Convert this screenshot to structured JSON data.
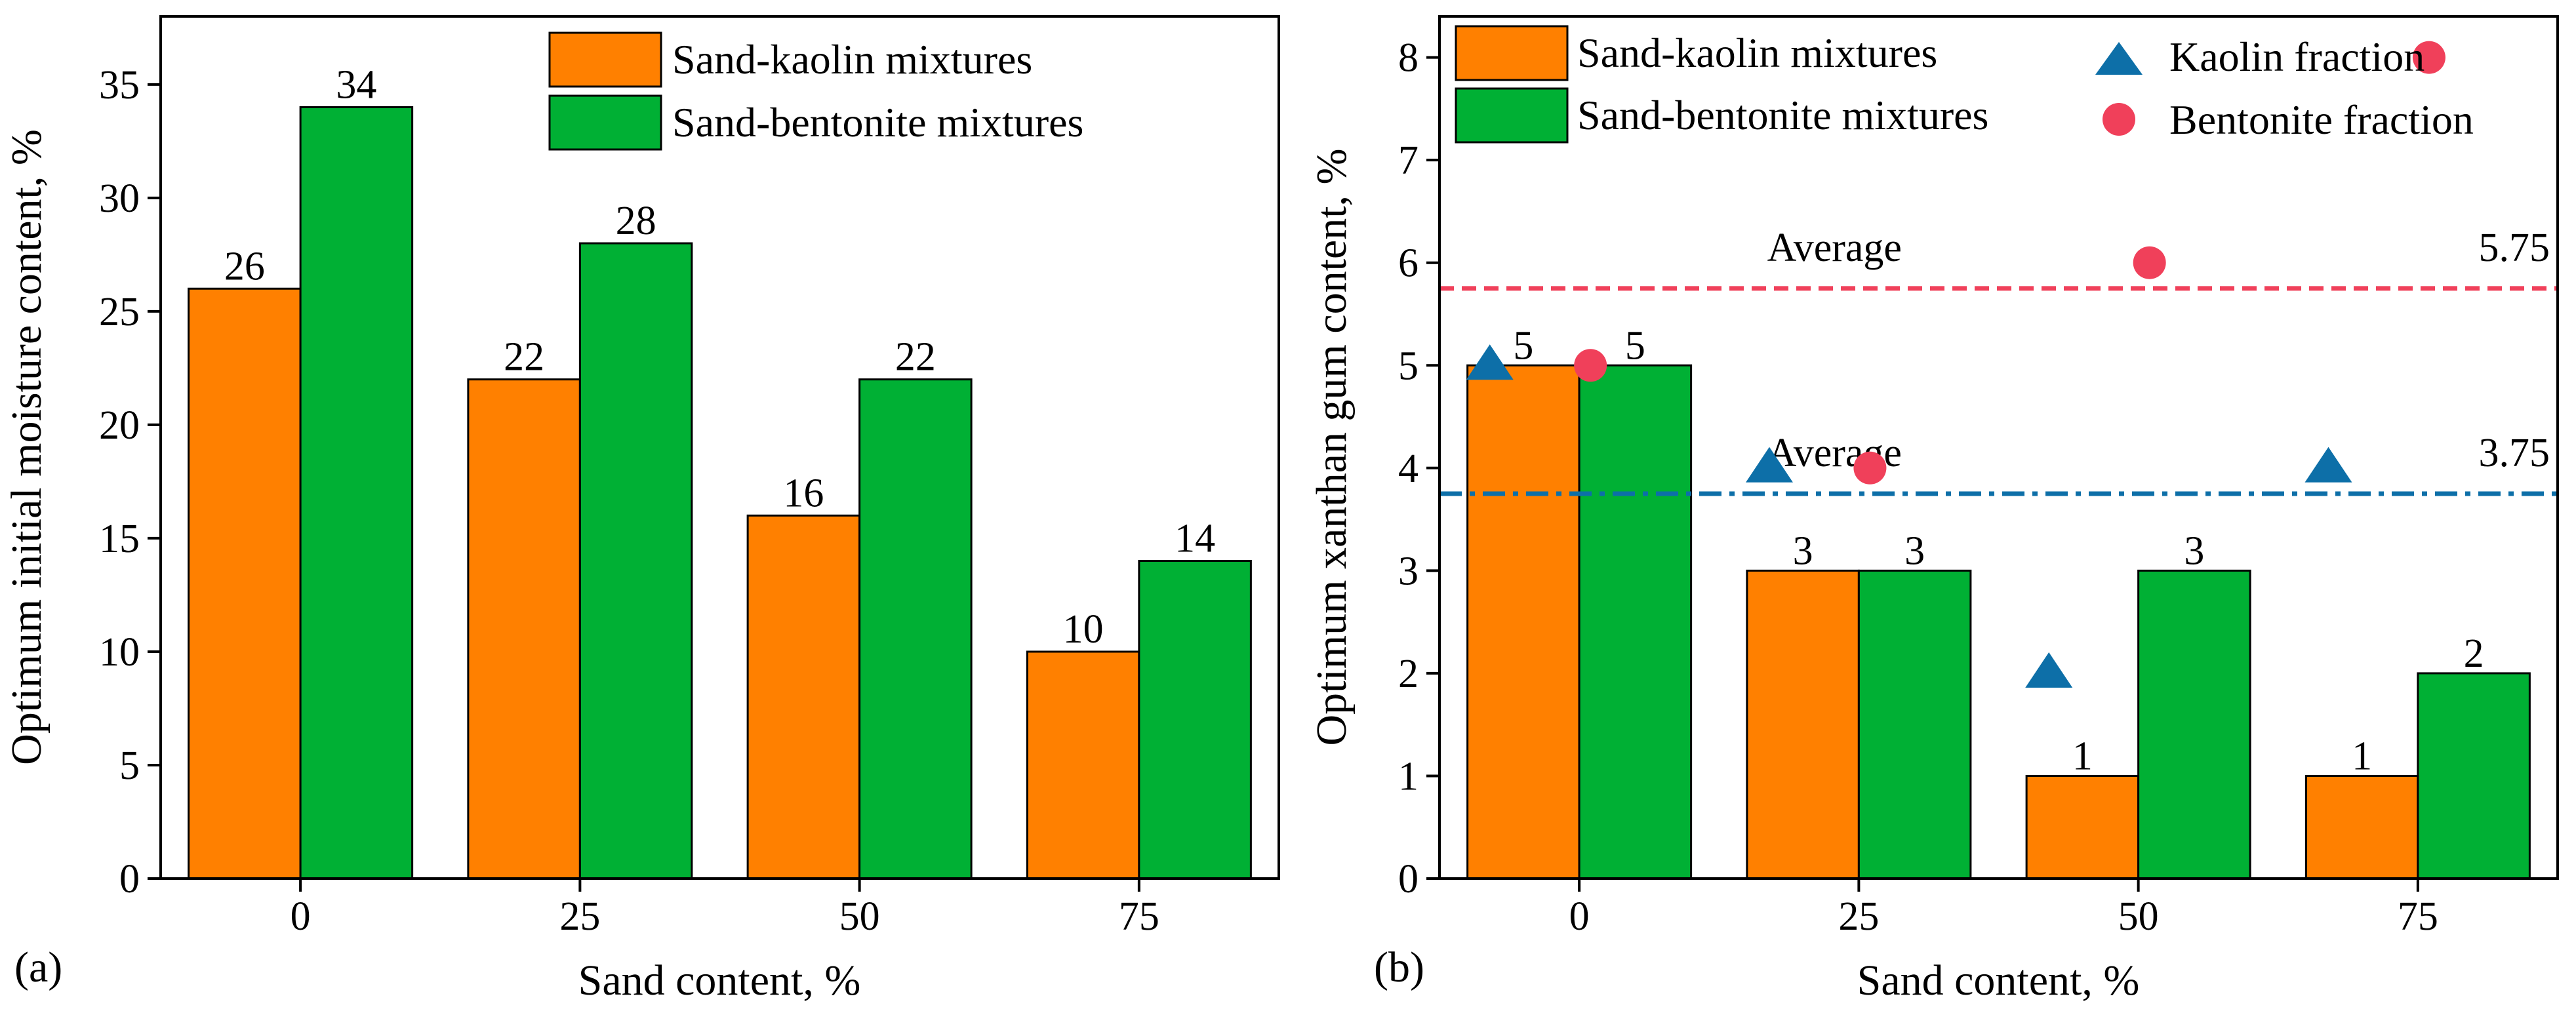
{
  "chart_data": [
    {
      "type": "bar",
      "panel_label": "(a)",
      "categories": [
        "0",
        "25",
        "50",
        "75"
      ],
      "series": [
        {
          "name": "Sand-kaolin mixtures",
          "values": [
            26,
            22,
            16,
            10
          ],
          "labels": [
            "26",
            "22",
            "16",
            "10"
          ],
          "color": "#FF8000"
        },
        {
          "name": "Sand-bentonite mixtures",
          "values": [
            34,
            28,
            22,
            14
          ],
          "labels": [
            "34",
            "28",
            "22",
            "14"
          ],
          "color": "#00B034"
        }
      ],
      "xlabel": "Sand content, %",
      "ylabel": "Optimum initial moisture content, %",
      "ylim": [
        0,
        38
      ],
      "yticks": [
        0,
        5,
        10,
        15,
        20,
        25,
        30,
        35
      ],
      "ytick_labels": [
        "0",
        "5",
        "10",
        "15",
        "20",
        "25",
        "30",
        "35"
      ],
      "grid": false,
      "legend_position": "top-right"
    },
    {
      "type": "bar",
      "panel_label": "(b)",
      "categories": [
        "0",
        "25",
        "50",
        "75"
      ],
      "series": [
        {
          "name": "Sand-kaolin mixtures",
          "values": [
            5,
            3,
            1,
            1
          ],
          "labels": [
            "5",
            "3",
            "1",
            "1"
          ],
          "color": "#FF8000"
        },
        {
          "name": "Sand-bentonite mixtures",
          "values": [
            5,
            3,
            3,
            2
          ],
          "labels": [
            "5",
            "3",
            "3",
            "2"
          ],
          "color": "#00B034"
        }
      ],
      "scatter_series": [
        {
          "name": "Kaolin fraction",
          "marker": "triangle",
          "color": "#0D6FA8",
          "x": [
            0,
            25,
            50,
            75
          ],
          "y": [
            5,
            4,
            2,
            4
          ]
        },
        {
          "name": "Bentonite fraction",
          "marker": "circle",
          "color": "#F0405A",
          "x": [
            0,
            25,
            50,
            75
          ],
          "y": [
            5,
            4,
            6,
            8
          ]
        }
      ],
      "reference_lines": [
        {
          "label": "Average",
          "value": 5.75,
          "value_label": "5.75",
          "style": "dashed",
          "color": "#F0405A"
        },
        {
          "label": "Average",
          "value": 3.75,
          "value_label": "3.75",
          "style": "dash-dot",
          "color": "#0D6FA8"
        }
      ],
      "xlabel": "Sand content, %",
      "ylabel": "Optimum xanthan gum content, %",
      "ylim": [
        0,
        8.4
      ],
      "yticks": [
        0,
        1,
        2,
        3,
        4,
        5,
        6,
        7,
        8
      ],
      "ytick_labels": [
        "0",
        "1",
        "2",
        "3",
        "4",
        "5",
        "6",
        "7",
        "8"
      ],
      "grid": false,
      "legend_position": "top"
    }
  ]
}
